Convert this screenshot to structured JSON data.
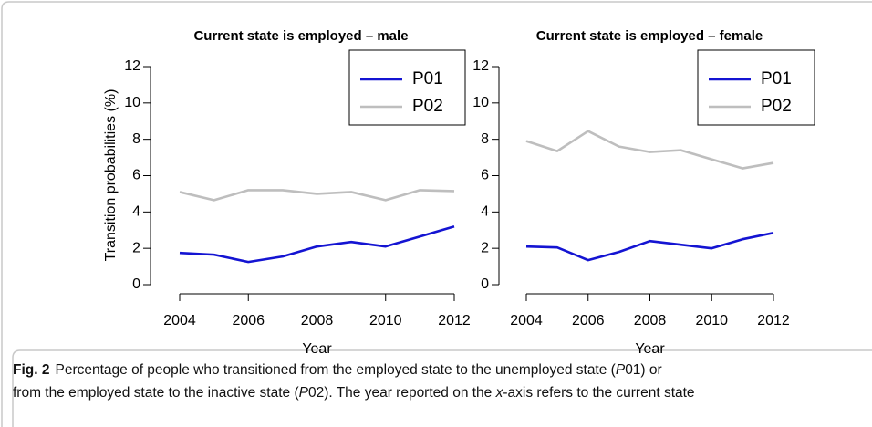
{
  "chart_data": [
    {
      "type": "line",
      "title": "Current state is employed – male",
      "xlabel": "Year",
      "ylabel": "Transition probabilities (%)",
      "x": [
        2004,
        2005,
        2006,
        2007,
        2008,
        2009,
        2010,
        2011,
        2012
      ],
      "series": [
        {
          "name": "P01",
          "color": "#1414d2",
          "values": [
            1.75,
            1.65,
            1.25,
            1.55,
            2.1,
            2.35,
            2.1,
            2.65,
            3.2
          ]
        },
        {
          "name": "P02",
          "color": "#bebebe",
          "values": [
            5.1,
            4.65,
            5.2,
            5.2,
            5.0,
            5.1,
            4.65,
            5.2,
            5.15
          ]
        }
      ],
      "xlim": [
        2004,
        2012
      ],
      "xticks": [
        2004,
        2006,
        2008,
        2010,
        2012
      ],
      "ylim": [
        0,
        12
      ],
      "yticks": [
        0,
        2,
        4,
        6,
        8,
        10,
        12
      ],
      "legend": "top-right"
    },
    {
      "type": "line",
      "title": "Current state is employed – female",
      "xlabel": "Year",
      "x": [
        2004,
        2005,
        2006,
        2007,
        2008,
        2009,
        2010,
        2011,
        2012
      ],
      "series": [
        {
          "name": "P01",
          "color": "#1414d2",
          "values": [
            2.1,
            2.05,
            1.35,
            1.8,
            2.4,
            2.2,
            2.0,
            2.5,
            2.85
          ]
        },
        {
          "name": "P02",
          "color": "#bebebe",
          "values": [
            7.9,
            7.35,
            8.45,
            7.6,
            7.3,
            7.4,
            6.9,
            6.4,
            6.7
          ]
        }
      ],
      "xlim": [
        2004,
        2012
      ],
      "xticks": [
        2004,
        2006,
        2008,
        2010,
        2012
      ],
      "ylim": [
        0,
        12
      ],
      "yticks": [
        0,
        2,
        4,
        6,
        8,
        10,
        12
      ],
      "legend": "top-right"
    }
  ],
  "caption": {
    "label": "Fig. 2",
    "lines": [
      [
        {
          "text": "Percentage of people who transitioned from the employed state to the unemployed state (",
          "italic": false
        },
        {
          "text": "P",
          "italic": true
        },
        {
          "text": "01) or",
          "italic": false
        }
      ],
      [
        {
          "text": "from the employed state to the inactive state (",
          "italic": false
        },
        {
          "text": "P",
          "italic": true
        },
        {
          "text": "02). The year reported on the ",
          "italic": false
        },
        {
          "text": "x",
          "italic": true
        },
        {
          "text": "-axis refers to the current state",
          "italic": false
        }
      ]
    ]
  }
}
